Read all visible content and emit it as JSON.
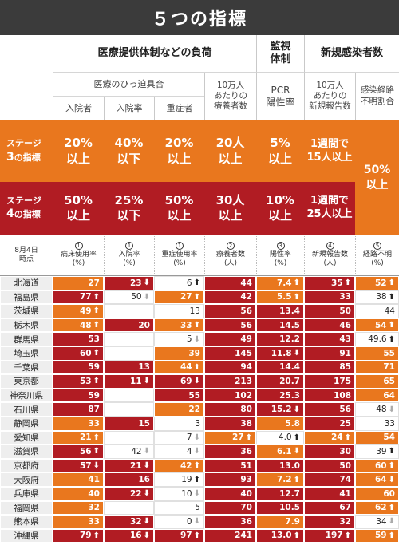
{
  "title": "５つの指標",
  "header": {
    "group_medical": "医療提供体制などの負荷",
    "group_monitor": "監視\n体制",
    "group_new": "新規感染者数",
    "sub_hospital": "医療のひっ迫具合",
    "sub_patients": "10万人\nあたりの\n療養者数",
    "sub_pcr": "PCR\n陽性率",
    "sub_new_per": "10万人\nあたりの\n新規報告数",
    "sub_unknown": "感染経路\n不明割合",
    "col_admitted": "入院者",
    "col_admit_rate": "入院率",
    "col_severe": "重症者"
  },
  "stage3": {
    "label_top": "ステージ",
    "label_num": "3",
    "label_bottom": "の指標",
    "values": [
      "20%\n以上",
      "40%\n以下",
      "20%\n以上",
      "20人\n以上",
      "5%\n以上",
      "1週間で\n15人以上"
    ]
  },
  "stage4": {
    "label_top": "ステージ",
    "label_num": "4",
    "label_bottom": "の指標",
    "values": [
      "50%\n以上",
      "25%\n以下",
      "50%\n以上",
      "30人\n以上",
      "10%\n以上",
      "1週間で\n25人以上"
    ]
  },
  "unknown_threshold": "50%\n以上",
  "col_head": {
    "date": "8月4日\n時点",
    "cols": [
      {
        "num": "1",
        "label": "病床使用率\n(%)"
      },
      {
        "num": "1",
        "label": "入院率\n(%)"
      },
      {
        "num": "1",
        "label": "重症使用率\n(%)"
      },
      {
        "num": "2",
        "label": "療養者数\n(人)"
      },
      {
        "num": "3",
        "label": "陽性率\n(%)"
      },
      {
        "num": "4",
        "label": "新規報告数\n(人)"
      },
      {
        "num": "5",
        "label": "経路不明\n(%)"
      }
    ]
  },
  "rows": [
    {
      "pref": "北海道",
      "cells": [
        [
          "27",
          "o",
          ""
        ],
        [
          "23",
          "r",
          "down"
        ],
        [
          "6",
          "w",
          "up"
        ],
        [
          "44",
          "r",
          ""
        ],
        [
          "7.4",
          "o",
          "up"
        ],
        [
          "35",
          "r",
          "up"
        ],
        [
          "52",
          "o",
          "up"
        ]
      ]
    },
    {
      "pref": "福島県",
      "cells": [
        [
          "77",
          "r",
          "up"
        ],
        [
          "50",
          "w",
          "down"
        ],
        [
          "27",
          "o",
          "up"
        ],
        [
          "42",
          "r",
          ""
        ],
        [
          "5.5",
          "o",
          "up"
        ],
        [
          "33",
          "r",
          ""
        ],
        [
          "38",
          "w",
          "up"
        ]
      ]
    },
    {
      "pref": "茨城県",
      "cells": [
        [
          "49",
          "o",
          "up"
        ],
        [
          "",
          "w",
          ""
        ],
        [
          "13",
          "w",
          ""
        ],
        [
          "56",
          "r",
          ""
        ],
        [
          "13.4",
          "r",
          ""
        ],
        [
          "50",
          "r",
          ""
        ],
        [
          "44",
          "w",
          ""
        ]
      ]
    },
    {
      "pref": "栃木県",
      "cells": [
        [
          "48",
          "o",
          "up"
        ],
        [
          "20",
          "r",
          ""
        ],
        [
          "33",
          "o",
          "up"
        ],
        [
          "56",
          "r",
          ""
        ],
        [
          "14.5",
          "r",
          ""
        ],
        [
          "46",
          "r",
          ""
        ],
        [
          "54",
          "o",
          "up"
        ]
      ]
    },
    {
      "pref": "群馬県",
      "cells": [
        [
          "53",
          "r",
          ""
        ],
        [
          "",
          "w",
          ""
        ],
        [
          "5",
          "w",
          "down"
        ],
        [
          "49",
          "r",
          ""
        ],
        [
          "12.2",
          "r",
          ""
        ],
        [
          "43",
          "r",
          ""
        ],
        [
          "49.6",
          "w",
          "up"
        ]
      ]
    },
    {
      "pref": "埼玉県",
      "cells": [
        [
          "60",
          "r",
          "up"
        ],
        [
          "",
          "w",
          ""
        ],
        [
          "39",
          "o",
          ""
        ],
        [
          "145",
          "r",
          ""
        ],
        [
          "11.8",
          "r",
          "down"
        ],
        [
          "91",
          "r",
          ""
        ],
        [
          "55",
          "o",
          ""
        ]
      ]
    },
    {
      "pref": "千葉県",
      "cells": [
        [
          "59",
          "r",
          ""
        ],
        [
          "13",
          "r",
          ""
        ],
        [
          "44",
          "o",
          "up"
        ],
        [
          "94",
          "r",
          ""
        ],
        [
          "14.4",
          "r",
          ""
        ],
        [
          "85",
          "r",
          ""
        ],
        [
          "71",
          "o",
          ""
        ]
      ]
    },
    {
      "pref": "東京都",
      "cells": [
        [
          "53",
          "r",
          "up"
        ],
        [
          "11",
          "r",
          "down"
        ],
        [
          "69",
          "r",
          "down"
        ],
        [
          "213",
          "r",
          ""
        ],
        [
          "20.7",
          "r",
          ""
        ],
        [
          "175",
          "r",
          ""
        ],
        [
          "65",
          "o",
          ""
        ]
      ]
    },
    {
      "pref": "神奈川県",
      "cells": [
        [
          "59",
          "r",
          ""
        ],
        [
          "",
          "w",
          ""
        ],
        [
          "55",
          "r",
          ""
        ],
        [
          "102",
          "r",
          ""
        ],
        [
          "25.3",
          "r",
          ""
        ],
        [
          "108",
          "r",
          ""
        ],
        [
          "64",
          "o",
          ""
        ]
      ]
    },
    {
      "pref": "石川県",
      "cells": [
        [
          "87",
          "r",
          ""
        ],
        [
          "",
          "w",
          ""
        ],
        [
          "22",
          "o",
          ""
        ],
        [
          "80",
          "r",
          ""
        ],
        [
          "15.2",
          "r",
          "down"
        ],
        [
          "56",
          "r",
          ""
        ],
        [
          "48",
          "w",
          "down"
        ]
      ]
    },
    {
      "pref": "静岡県",
      "cells": [
        [
          "33",
          "o",
          ""
        ],
        [
          "15",
          "r",
          ""
        ],
        [
          "3",
          "w",
          ""
        ],
        [
          "38",
          "r",
          ""
        ],
        [
          "5.8",
          "o",
          ""
        ],
        [
          "25",
          "r",
          ""
        ],
        [
          "33",
          "w",
          ""
        ]
      ]
    },
    {
      "pref": "愛知県",
      "cells": [
        [
          "21",
          "o",
          "up"
        ],
        [
          "",
          "w",
          ""
        ],
        [
          "7",
          "w",
          "down"
        ],
        [
          "27",
          "o",
          "up"
        ],
        [
          "4.0",
          "w",
          "up"
        ],
        [
          "24",
          "o",
          "up"
        ],
        [
          "54",
          "o",
          ""
        ]
      ]
    },
    {
      "pref": "滋賀県",
      "cells": [
        [
          "56",
          "r",
          "up"
        ],
        [
          "42",
          "w",
          "down"
        ],
        [
          "4",
          "w",
          "down"
        ],
        [
          "36",
          "r",
          ""
        ],
        [
          "6.1",
          "o",
          "down"
        ],
        [
          "30",
          "r",
          ""
        ],
        [
          "39",
          "w",
          "up"
        ]
      ]
    },
    {
      "pref": "京都府",
      "cells": [
        [
          "57",
          "r",
          "down"
        ],
        [
          "21",
          "r",
          "down"
        ],
        [
          "42",
          "o",
          "up"
        ],
        [
          "51",
          "r",
          ""
        ],
        [
          "13.0",
          "r",
          ""
        ],
        [
          "50",
          "r",
          ""
        ],
        [
          "60",
          "o",
          "up"
        ]
      ]
    },
    {
      "pref": "大阪府",
      "cells": [
        [
          "41",
          "o",
          ""
        ],
        [
          "16",
          "r",
          ""
        ],
        [
          "19",
          "w",
          "up"
        ],
        [
          "93",
          "r",
          ""
        ],
        [
          "7.2",
          "o",
          "up"
        ],
        [
          "74",
          "r",
          ""
        ],
        [
          "64",
          "o",
          "down"
        ]
      ]
    },
    {
      "pref": "兵庫県",
      "cells": [
        [
          "40",
          "o",
          ""
        ],
        [
          "22",
          "r",
          "down"
        ],
        [
          "10",
          "w",
          "down"
        ],
        [
          "40",
          "r",
          ""
        ],
        [
          "12.7",
          "r",
          ""
        ],
        [
          "41",
          "r",
          ""
        ],
        [
          "60",
          "o",
          ""
        ]
      ]
    },
    {
      "pref": "福岡県",
      "cells": [
        [
          "32",
          "o",
          ""
        ],
        [
          "",
          "w",
          ""
        ],
        [
          "5",
          "w",
          ""
        ],
        [
          "70",
          "r",
          ""
        ],
        [
          "10.5",
          "r",
          ""
        ],
        [
          "67",
          "r",
          ""
        ],
        [
          "62",
          "o",
          "up"
        ]
      ]
    },
    {
      "pref": "熊本県",
      "cells": [
        [
          "33",
          "o",
          ""
        ],
        [
          "32",
          "r",
          "down"
        ],
        [
          "0",
          "w",
          "down"
        ],
        [
          "36",
          "r",
          ""
        ],
        [
          "7.9",
          "o",
          ""
        ],
        [
          "32",
          "r",
          ""
        ],
        [
          "34",
          "w",
          "down"
        ]
      ]
    },
    {
      "pref": "沖縄県",
      "cells": [
        [
          "79",
          "r",
          "up"
        ],
        [
          "16",
          "r",
          "down"
        ],
        [
          "97",
          "r",
          "up"
        ],
        [
          "241",
          "r",
          ""
        ],
        [
          "13.0",
          "r",
          "up"
        ],
        [
          "197",
          "r",
          "up"
        ],
        [
          "59",
          "o",
          "up"
        ]
      ]
    }
  ]
}
